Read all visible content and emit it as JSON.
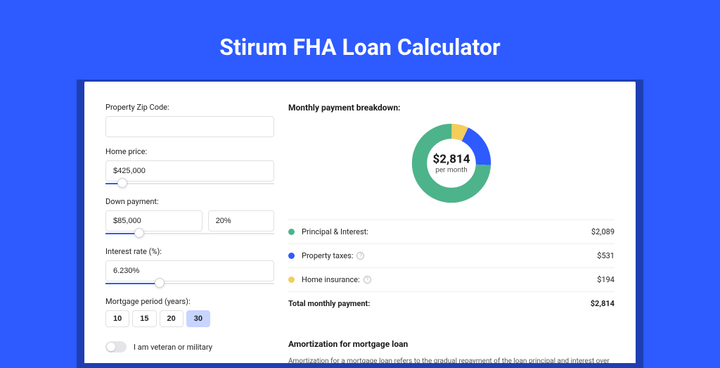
{
  "page": {
    "title": "Stirum FHA Loan Calculator",
    "bg_color": "#2d5bff",
    "card_bg": "#ffffff"
  },
  "form": {
    "zip": {
      "label": "Property Zip Code:",
      "value": "",
      "placeholder": ""
    },
    "home_price": {
      "label": "Home price:",
      "value": "$425,000",
      "slider_pct": 10
    },
    "down_payment": {
      "label": "Down payment:",
      "value": "$85,000",
      "pct": "20%",
      "slider_pct": 20
    },
    "interest_rate": {
      "label": "Interest rate (%):",
      "value": "6.230%",
      "slider_pct": 32
    },
    "period": {
      "label": "Mortgage period (years):",
      "options": [
        "10",
        "15",
        "20",
        "30"
      ],
      "active": "30"
    },
    "veteran": {
      "label": "I am veteran or military",
      "checked": false
    }
  },
  "breakdown": {
    "title": "Monthly payment breakdown:",
    "chart": {
      "type": "donut",
      "center_value": "$2,814",
      "center_sub": "per month",
      "thickness": 18,
      "slices": [
        {
          "label": "Principal & Interest:",
          "value": "$2,089",
          "color": "#4db38a",
          "pct": 74.2,
          "has_info": false
        },
        {
          "label": "Property taxes:",
          "value": "$531",
          "color": "#2d5bff",
          "pct": 18.9,
          "has_info": true
        },
        {
          "label": "Home insurance:",
          "value": "$194",
          "color": "#f4cd5a",
          "pct": 6.9,
          "has_info": true
        }
      ],
      "bg_color": "#ffffff"
    },
    "total": {
      "label": "Total monthly payment:",
      "value": "$2,814"
    }
  },
  "amortization": {
    "title": "Amortization for mortgage loan",
    "text": "Amortization for a mortgage loan refers to the gradual repayment of the loan principal and interest over a specified"
  }
}
